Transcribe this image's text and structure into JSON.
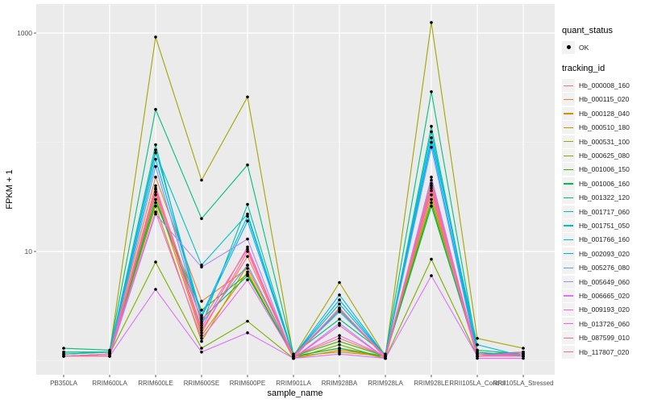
{
  "chart_data": {
    "type": "line",
    "title": "",
    "xlabel": "sample_name",
    "ylabel": "FPKM + 1",
    "yscale": "log10",
    "ylim": [
      0.8,
      1300
    ],
    "yticks": [
      10,
      1000
    ],
    "ytick_labels": [
      "10",
      "1000"
    ],
    "grid": true,
    "legend_position": "right",
    "categories": [
      "PB350LA",
      "RRIM600LA",
      "RRIM600LE",
      "RRIM600SE",
      "RRIM600PE",
      "RRIM901LA",
      "RRIM928BA",
      "RRIM928LA",
      "RRIM928LE",
      "RRII105LA_Control",
      "RRII105LA_Stressed"
    ],
    "shape_legend": {
      "title": "quant_status",
      "entries": [
        "OK"
      ]
    },
    "color_legend_title": "tracking_id",
    "series": [
      {
        "name": "Hb_000008_160",
        "color": "#F8766D",
        "values": [
          1.1,
          1.15,
          40,
          1.9,
          9.0,
          1.1,
          1.6,
          1.1,
          45,
          1.1,
          1.2
        ]
      },
      {
        "name": "Hb_000115_020",
        "color": "#EA8331",
        "values": [
          1.15,
          1.2,
          48,
          3.5,
          7.0,
          1.1,
          1.3,
          1.05,
          38,
          1.15,
          1.1
        ]
      },
      {
        "name": "Hb_000128_040",
        "color": "#D89000",
        "values": [
          1.1,
          1.1,
          33,
          1.7,
          6.5,
          1.05,
          1.25,
          1.1,
          33,
          1.1,
          1.15
        ]
      },
      {
        "name": "Hb_000510_180",
        "color": "#C09B00",
        "values": [
          1.1,
          1.15,
          26,
          1.5,
          7.5,
          1.1,
          1.2,
          1.1,
          30,
          1.2,
          1.1
        ]
      },
      {
        "name": "Hb_000531_100",
        "color": "#A3A500",
        "values": [
          1.2,
          1.2,
          920,
          45,
          260,
          1.1,
          5.2,
          1.1,
          1250,
          1.6,
          1.3
        ]
      },
      {
        "name": "Hb_000625_080",
        "color": "#7CAE00",
        "values": [
          1.1,
          1.15,
          8.0,
          1.3,
          2.3,
          1.05,
          1.4,
          1.05,
          8.5,
          1.1,
          1.15
        ]
      },
      {
        "name": "Hb_001006_150",
        "color": "#39B600",
        "values": [
          1.1,
          1.15,
          28,
          2.9,
          6.2,
          1.1,
          1.5,
          1.1,
          28,
          1.1,
          1.1
        ]
      },
      {
        "name": "Hb_001006_160",
        "color": "#00BB4E",
        "values": [
          1.15,
          1.2,
          30,
          2.4,
          6.0,
          1.1,
          1.3,
          1.1,
          26,
          1.15,
          1.2
        ]
      },
      {
        "name": "Hb_001322_120",
        "color": "#00BF7D",
        "values": [
          1.3,
          1.25,
          200,
          20,
          62,
          1.15,
          2.4,
          1.15,
          290,
          1.25,
          1.15
        ]
      },
      {
        "name": "Hb_001717_060",
        "color": "#00C1A3",
        "values": [
          1.2,
          1.2,
          95,
          2.1,
          27,
          1.1,
          2.9,
          1.1,
          140,
          1.2,
          1.1
        ]
      },
      {
        "name": "Hb_001751_050",
        "color": "#00BFC4",
        "values": [
          1.15,
          1.2,
          80,
          7.5,
          22,
          1.1,
          3.3,
          1.1,
          125,
          1.15,
          1.15
        ]
      },
      {
        "name": "Hb_001766_160",
        "color": "#00B9E3",
        "values": [
          1.1,
          1.15,
          85,
          2.6,
          21,
          1.1,
          4.0,
          1.1,
          110,
          1.4,
          1.1
        ]
      },
      {
        "name": "Hb_002093_020",
        "color": "#00ADFA",
        "values": [
          1.1,
          1.15,
          70,
          2.5,
          19,
          1.1,
          3.6,
          1.1,
          100,
          1.15,
          1.15
        ]
      },
      {
        "name": "Hb_005276_080",
        "color": "#619CFF",
        "values": [
          1.1,
          1.15,
          60,
          2.2,
          7.5,
          1.1,
          2.8,
          1.1,
          90,
          1.1,
          1.15
        ]
      },
      {
        "name": "Hb_005649_060",
        "color": "#AE87FF",
        "values": [
          1.1,
          1.1,
          22,
          7.2,
          13,
          1.05,
          2.2,
          1.05,
          48,
          1.1,
          1.1
        ]
      },
      {
        "name": "Hb_006665_020",
        "color": "#DB72FB",
        "values": [
          1.1,
          1.1,
          4.5,
          1.2,
          1.8,
          1.05,
          1.15,
          1.05,
          6.0,
          1.1,
          1.1
        ]
      },
      {
        "name": "Hb_009193_020",
        "color": "#F564E3",
        "values": [
          1.1,
          1.15,
          23,
          1.6,
          5.5,
          1.1,
          1.7,
          1.1,
          36,
          1.05,
          1.05
        ]
      },
      {
        "name": "Hb_013726_060",
        "color": "#FF61C3",
        "values": [
          1.1,
          1.1,
          35,
          2.0,
          11,
          1.05,
          2.1,
          1.05,
          40,
          1.1,
          1.2
        ]
      },
      {
        "name": "Hb_087599_010",
        "color": "#FF6C91",
        "values": [
          1.1,
          1.15,
          38,
          2.3,
          10.5,
          1.1,
          3.0,
          1.1,
          42,
          1.15,
          1.1
        ]
      },
      {
        "name": "Hb_117807_020",
        "color": "#FF699C",
        "values": [
          1.1,
          1.1,
          37,
          1.8,
          10,
          1.05,
          3.05,
          1.05,
          40,
          1.1,
          1.15
        ]
      }
    ]
  }
}
